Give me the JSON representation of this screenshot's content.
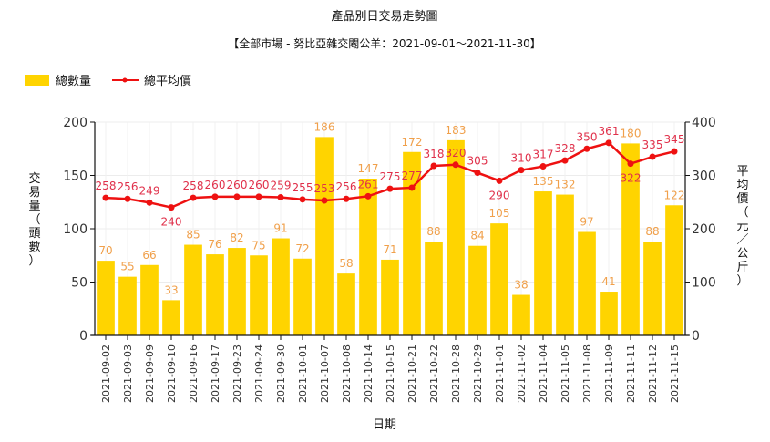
{
  "chart_data": {
    "type": "bar+line",
    "title": "產品別日交易走勢圖",
    "subtitle": "【全部市場 - 努比亞雜交閹公羊：2021-09-01～2021-11-30】",
    "xlabel": "日期",
    "ylabel_left": "交易量（頭數）",
    "ylabel_right": "平均價（元／公斤）",
    "ylim_left": [
      0,
      200
    ],
    "ylim_right": [
      0,
      400
    ],
    "yticks_left": [
      0,
      50,
      100,
      150,
      200
    ],
    "yticks_right": [
      0,
      100,
      200,
      300,
      400
    ],
    "grid": true,
    "legend_position": "top-left",
    "categories": [
      "2021-09-02",
      "2021-09-03",
      "2021-09-09",
      "2021-09-10",
      "2021-09-16",
      "2021-09-17",
      "2021-09-23",
      "2021-09-24",
      "2021-09-30",
      "2021-10-01",
      "2021-10-07",
      "2021-10-08",
      "2021-10-14",
      "2021-10-15",
      "2021-10-21",
      "2021-10-22",
      "2021-10-28",
      "2021-10-29",
      "2021-11-01",
      "2021-11-02",
      "2021-11-04",
      "2021-11-05",
      "2021-11-08",
      "2021-11-09",
      "2021-11-11",
      "2021-11-12",
      "2021-11-15"
    ],
    "series": [
      {
        "name": "總數量",
        "type": "bar",
        "axis": "left",
        "color": "#ffd400",
        "label_color": "#f0a04b",
        "values": [
          70,
          55,
          66,
          33,
          85,
          76,
          82,
          75,
          91,
          72,
          186,
          58,
          147,
          71,
          172,
          88,
          183,
          84,
          105,
          38,
          135,
          132,
          97,
          41,
          180,
          88,
          122
        ]
      },
      {
        "name": "總平均價",
        "type": "line",
        "axis": "right",
        "color": "#ee1111",
        "label_color": "#e0304a",
        "values": [
          258,
          256,
          249,
          240,
          258,
          260,
          260,
          260,
          259,
          255,
          253,
          256,
          261,
          275,
          277,
          318,
          320,
          305,
          290,
          310,
          317,
          328,
          350,
          361,
          322,
          335,
          345
        ]
      }
    ]
  }
}
